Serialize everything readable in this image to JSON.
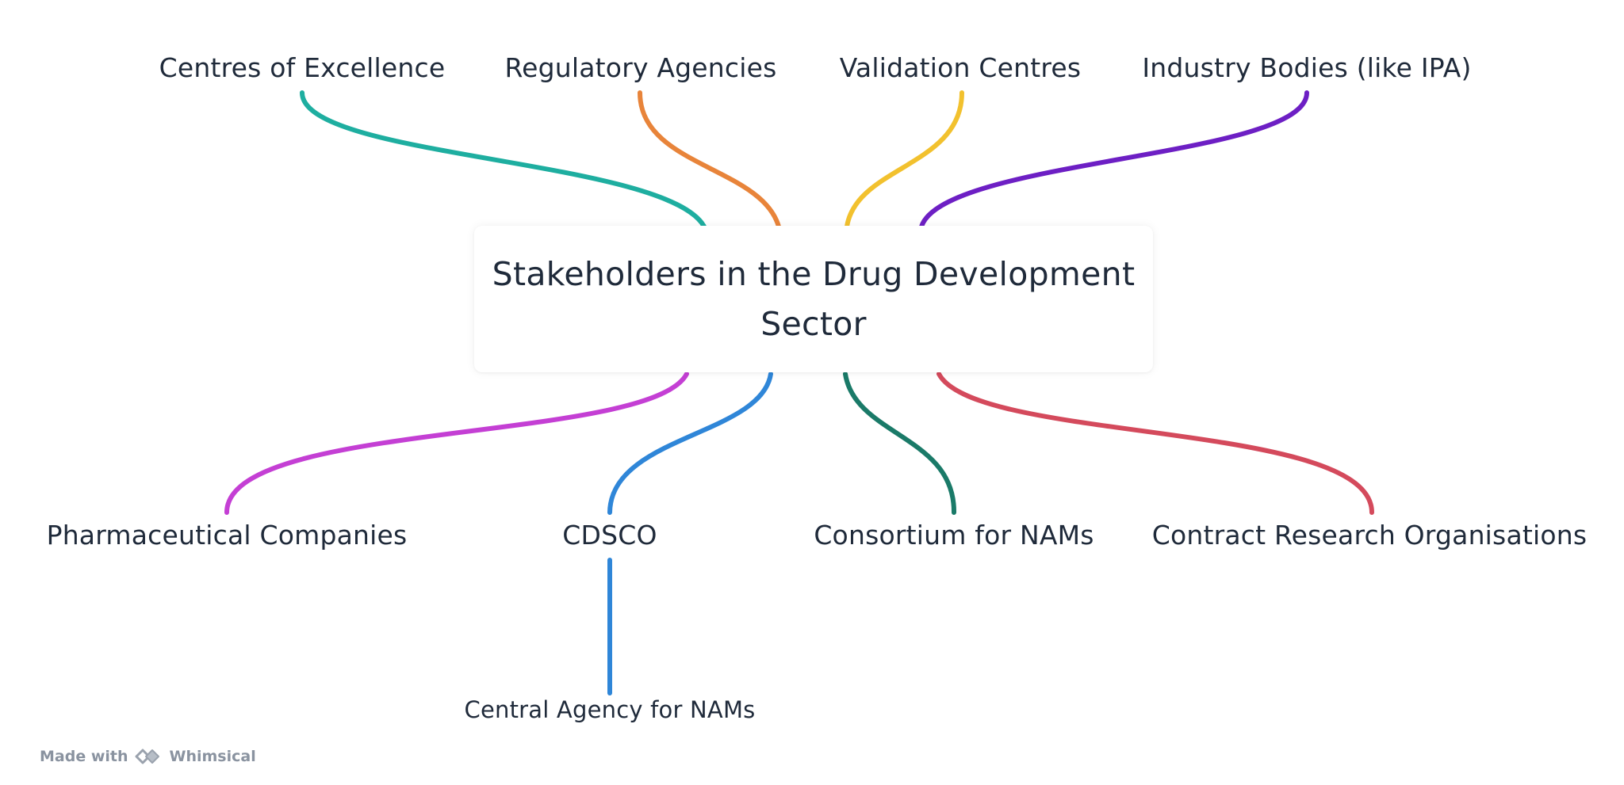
{
  "diagram": {
    "central_topic": "Stakeholders in the Drug Development Sector",
    "branches_top": [
      {
        "label": "Centres of Excellence",
        "color": "#1eaea0"
      },
      {
        "label": "Regulatory Agencies",
        "color": "#e8843a"
      },
      {
        "label": "Validation Centres",
        "color": "#f2c12e"
      },
      {
        "label": "Industry Bodies (like IPA)",
        "color": "#6d1fc4"
      }
    ],
    "branches_bottom": [
      {
        "label": "Pharmaceutical Companies",
        "color": "#c43fd4"
      },
      {
        "label": "CDSCO",
        "color": "#2f86d8",
        "children": [
          {
            "label": "Central Agency for NAMs",
            "color": "#2f86d8"
          }
        ]
      },
      {
        "label": "Consortium for NAMs",
        "color": "#1a7a68"
      },
      {
        "label": "Contract Research Organisations",
        "color": "#d44a5c"
      }
    ]
  },
  "footer": {
    "made_with": "Made with",
    "brand": "Whimsical",
    "logo_icon": "whimsical-logo-icon"
  }
}
